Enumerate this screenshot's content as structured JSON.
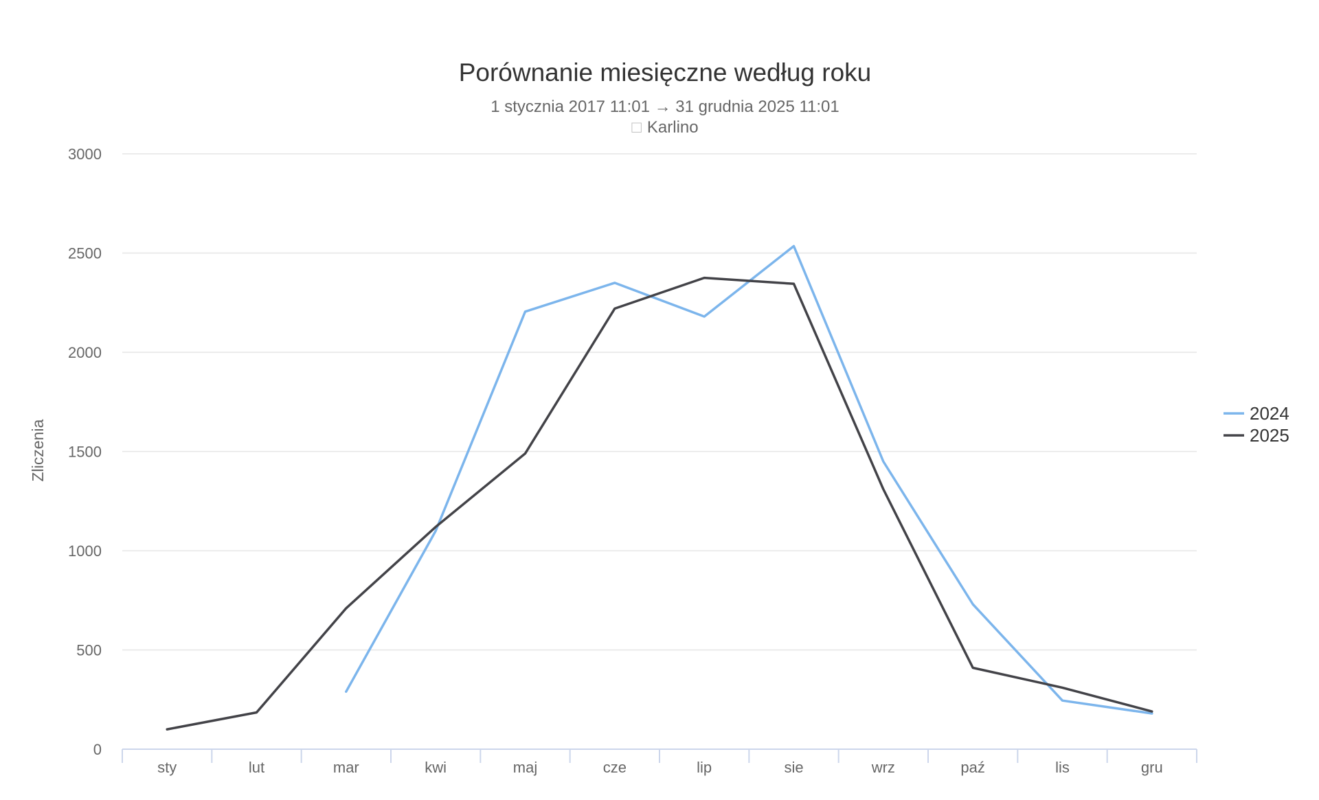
{
  "chart_data": {
    "type": "line",
    "title": "Porównanie miesięczne według roku",
    "subtitle": "1 stycznia 2017 11:01 → 31 grudnia 2025 11:01",
    "location_icon": "map-marker-icon",
    "location_glyph": "□",
    "location": "Karlino",
    "xlabel": "",
    "ylabel": "Zliczenia",
    "categories": [
      "sty",
      "lut",
      "mar",
      "kwi",
      "maj",
      "cze",
      "lip",
      "sie",
      "wrz",
      "paź",
      "lis",
      "gru"
    ],
    "ylim": [
      0,
      3000
    ],
    "yticks": [
      0,
      500,
      1000,
      1500,
      2000,
      2500,
      3000
    ],
    "ytick_labels": [
      "0",
      "500",
      "1000",
      "1500",
      "2000",
      "2500",
      "3000"
    ],
    "grid": true,
    "legend_position": "right",
    "series": [
      {
        "name": "2024",
        "color": "#7cb5ec",
        "values": [
          null,
          null,
          290,
          1100,
          2205,
          2350,
          2180,
          2535,
          1450,
          730,
          245,
          180
        ]
      },
      {
        "name": "2025",
        "color": "#434348",
        "values": [
          100,
          185,
          710,
          1120,
          1490,
          2220,
          2375,
          2345,
          1310,
          410,
          310,
          190
        ]
      }
    ]
  }
}
